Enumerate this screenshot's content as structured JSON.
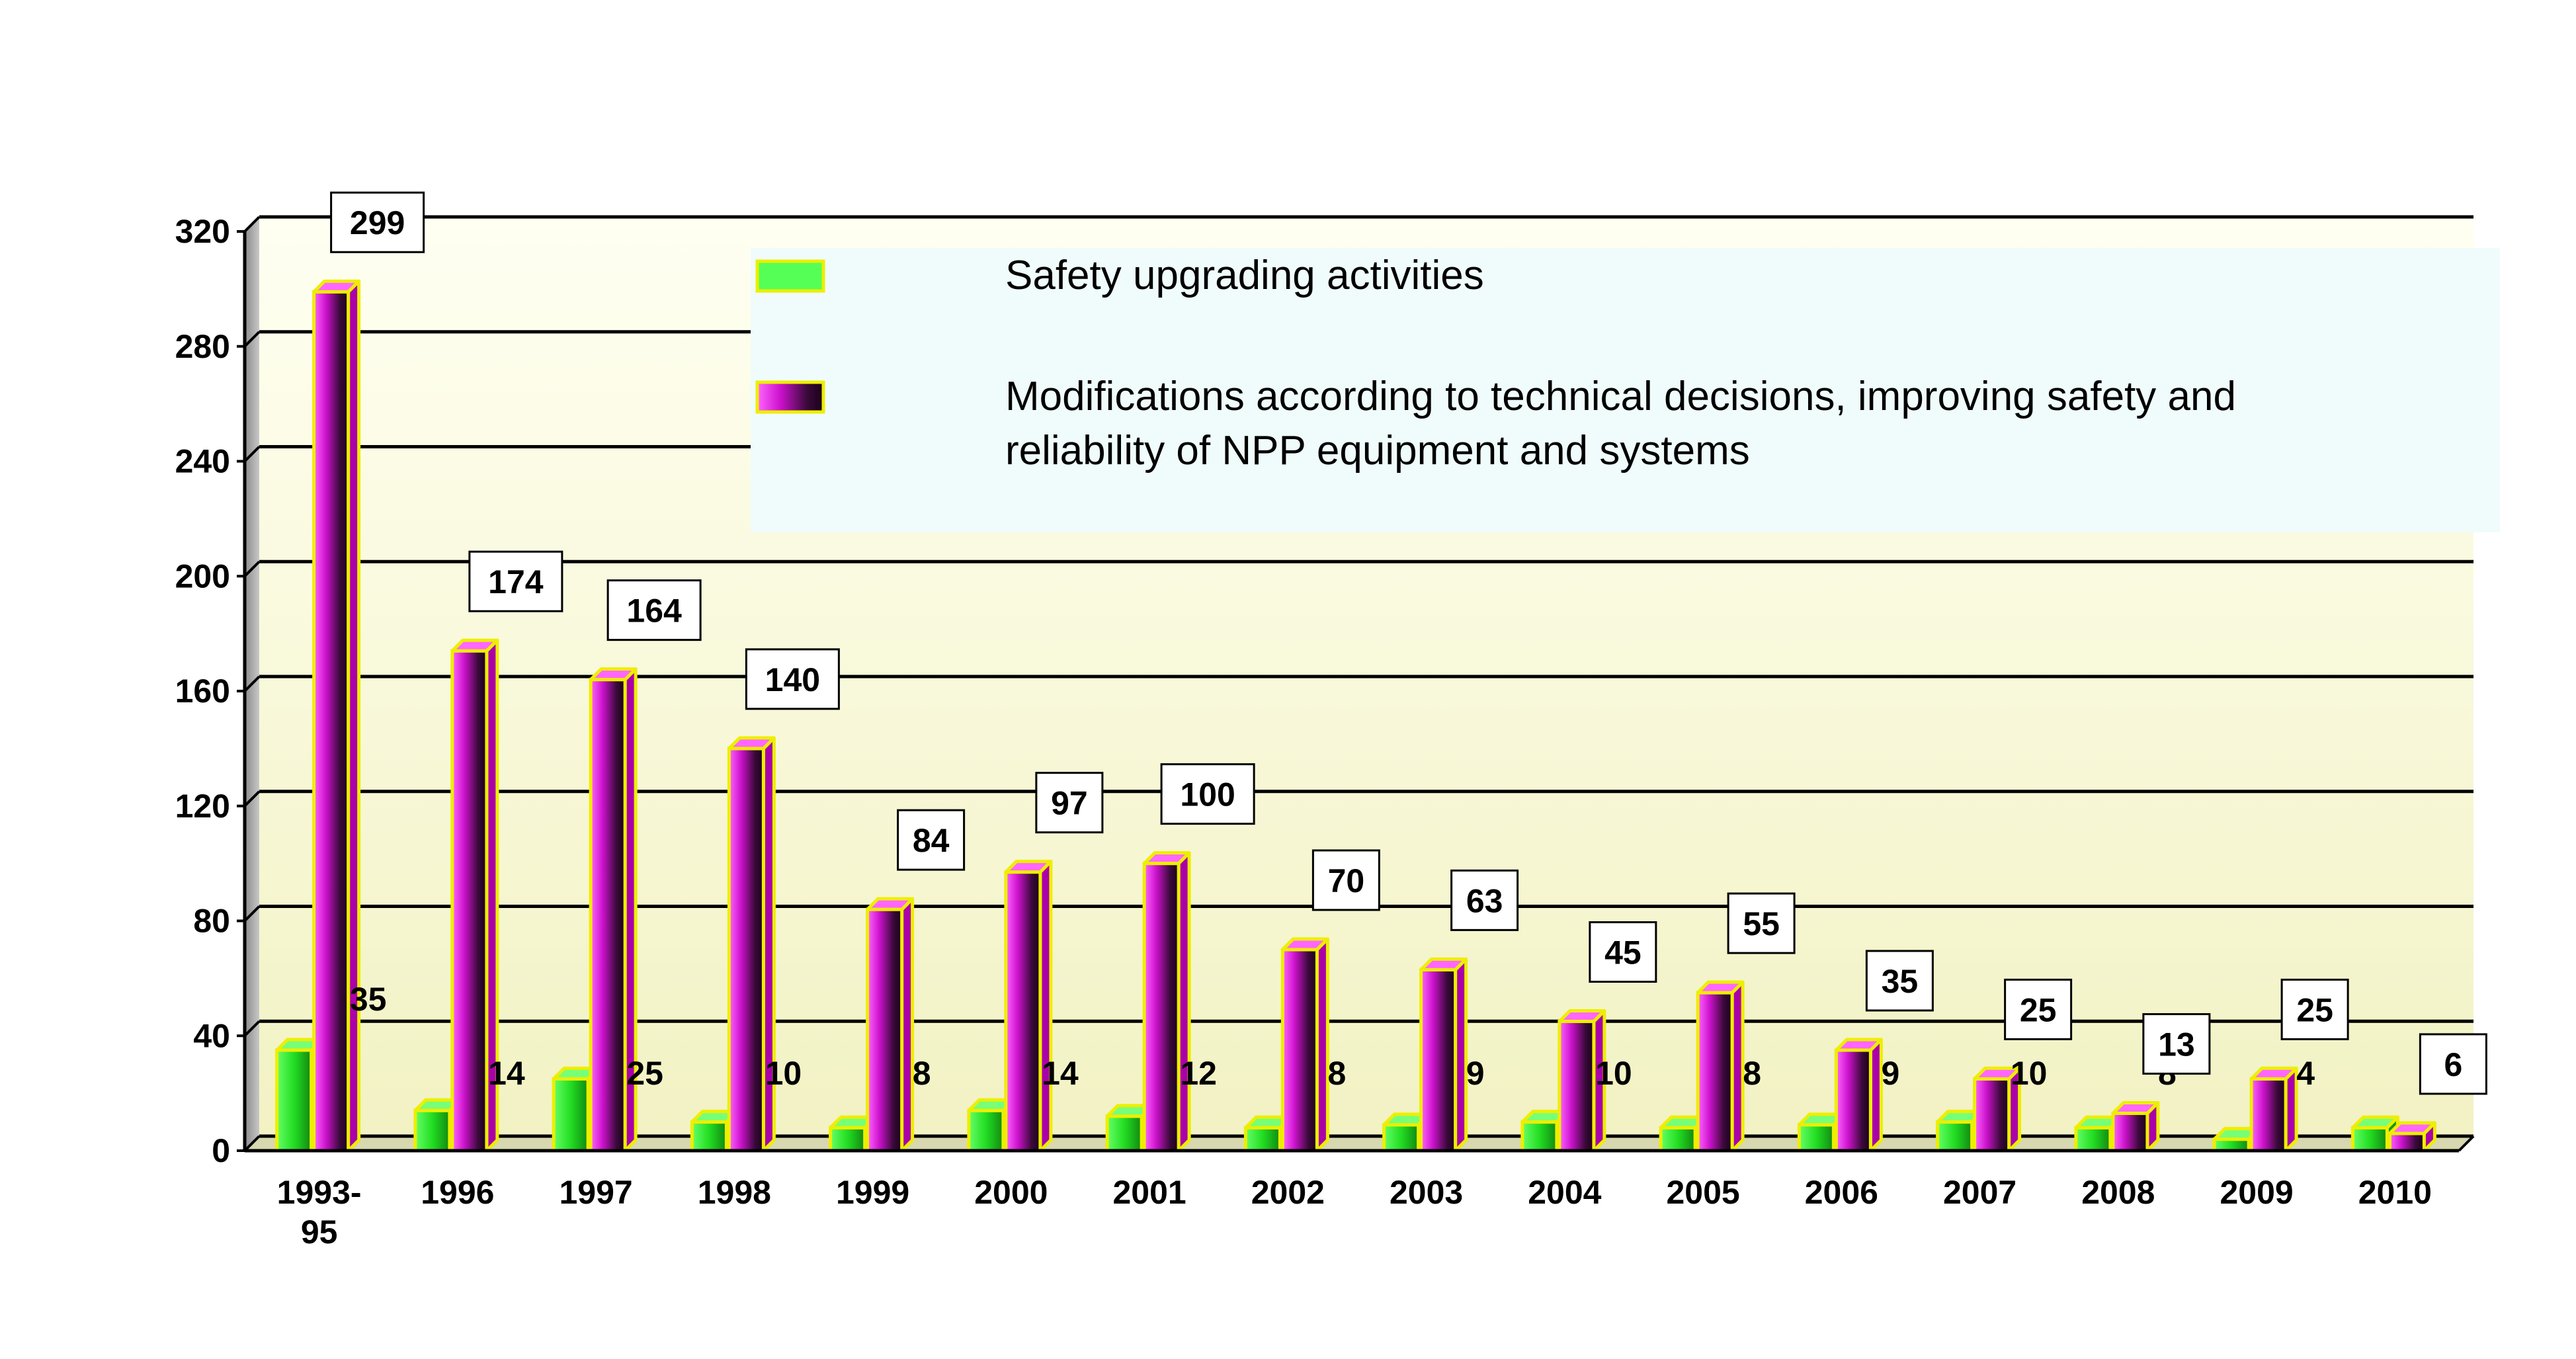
{
  "chart_data": {
    "type": "bar",
    "categories": [
      "1993-95",
      "1996",
      "1997",
      "1998",
      "1999",
      "2000",
      "2001",
      "2002",
      "2003",
      "2004",
      "2005",
      "2006",
      "2007",
      "2008",
      "2009",
      "2010"
    ],
    "series": [
      {
        "name": "Safety upgrading activities",
        "values": [
          35,
          14,
          25,
          10,
          8,
          14,
          12,
          8,
          9,
          10,
          8,
          9,
          10,
          8,
          4,
          8
        ],
        "color": "#33ee33"
      },
      {
        "name": "Modifications according to technical decisions, improving safety and reliability of NPP equipment and systems",
        "values": [
          299,
          174,
          164,
          140,
          84,
          97,
          100,
          70,
          63,
          45,
          55,
          35,
          25,
          13,
          25,
          6
        ],
        "color": "#ee22ee"
      }
    ],
    "yticks": [
      "0",
      "40",
      "80",
      "120",
      "160",
      "200",
      "240",
      "280",
      "320"
    ],
    "ylim": [
      0,
      320
    ],
    "grid": true,
    "legend_position": "top-right",
    "colors": {
      "wall_top": "#fffff0",
      "wall_bottom": "#f3f3c8",
      "bar_outline": "#eeee00",
      "legend_bg": "#f0fcfc"
    }
  }
}
